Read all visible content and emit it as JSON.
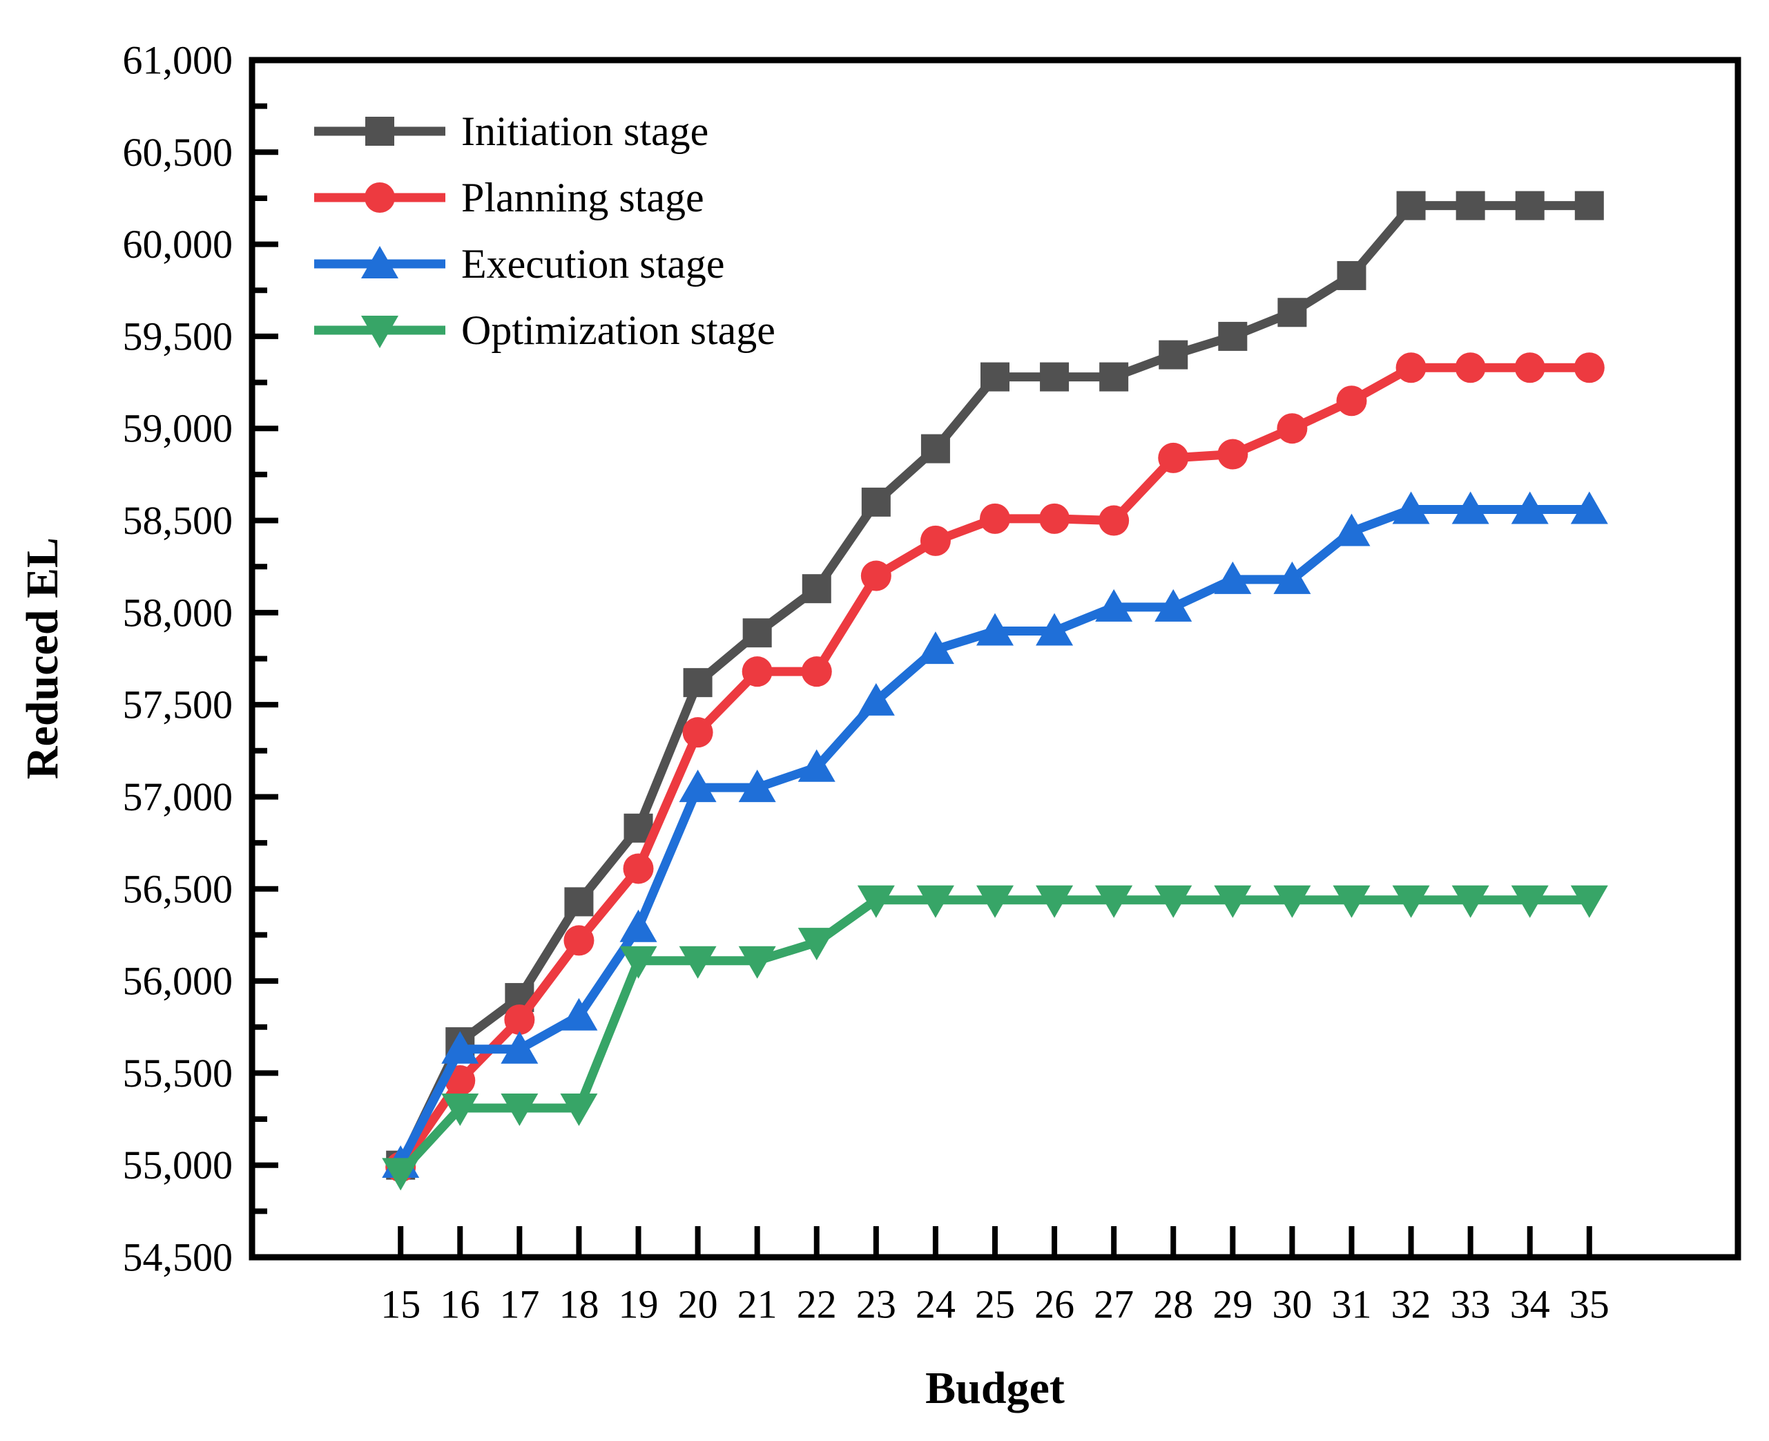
{
  "figure": {
    "background": "#ffffff",
    "frame_color": "#000000",
    "text_color": "#000000"
  },
  "chart_data": {
    "type": "line",
    "title": "",
    "xlabel": "Budget",
    "ylabel": "Reduced EL",
    "grid": false,
    "legend_position": "top-left",
    "ylim": [
      54500,
      61000
    ],
    "ytick_step": 500,
    "yminor_step": 250,
    "yticks": [
      "54,500",
      "55,000",
      "55,500",
      "56,000",
      "56,500",
      "57,000",
      "57,500",
      "58,000",
      "58,500",
      "59,000",
      "59,500",
      "60,000",
      "60,500",
      "61,000"
    ],
    "x": [
      15,
      16,
      17,
      18,
      19,
      20,
      21,
      22,
      23,
      24,
      25,
      26,
      27,
      28,
      29,
      30,
      31,
      32,
      33,
      34,
      35
    ],
    "series": [
      {
        "name": "Initiation stage",
        "color": "#515151",
        "marker": "square",
        "values": [
          55000,
          55670,
          55910,
          56430,
          56830,
          57620,
          57890,
          58130,
          58600,
          58890,
          59280,
          59280,
          59280,
          59400,
          59500,
          59630,
          59830,
          60210,
          60210,
          60210,
          60210
        ]
      },
      {
        "name": "Planning stage",
        "color": "#ed3a40",
        "marker": "circle",
        "values": [
          54990,
          55460,
          55790,
          56220,
          56610,
          57350,
          57680,
          57680,
          58200,
          58390,
          58510,
          58510,
          58500,
          58840,
          58860,
          59000,
          59150,
          59330,
          59330,
          59330,
          59330
        ]
      },
      {
        "name": "Execution stage",
        "color": "#1f6fd8",
        "marker": "triangle-up",
        "values": [
          55010,
          55630,
          55630,
          55810,
          56290,
          57050,
          57050,
          57160,
          57520,
          57800,
          57900,
          57900,
          58030,
          58030,
          58180,
          58180,
          58440,
          58560,
          58560,
          58560,
          58560
        ]
      },
      {
        "name": "Optimization stage",
        "color": "#37a567",
        "marker": "triangle-down",
        "values": [
          54960,
          55310,
          55310,
          55310,
          56110,
          56110,
          56110,
          56210,
          56440,
          56440,
          56440,
          56440,
          56440,
          56440,
          56440,
          56440,
          56440,
          56440,
          56440,
          56440,
          56440
        ]
      }
    ]
  }
}
